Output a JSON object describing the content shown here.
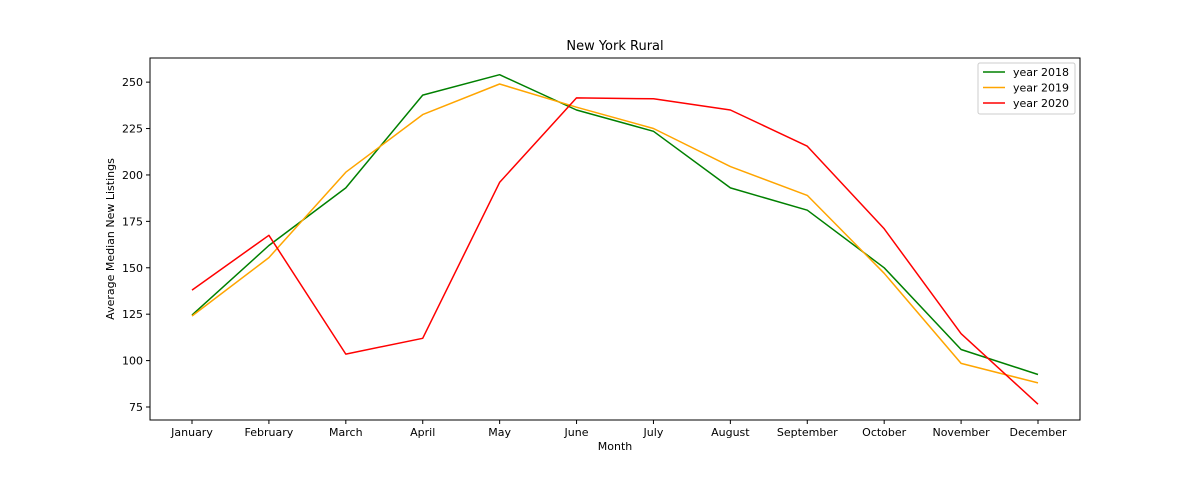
{
  "chart_data": {
    "type": "line",
    "title": "New York Rural",
    "xlabel": "Month",
    "ylabel": "Average Median New Listings",
    "categories": [
      "January",
      "February",
      "March",
      "April",
      "May",
      "June",
      "July",
      "August",
      "September",
      "October",
      "November",
      "December"
    ],
    "ylim": [
      68,
      263
    ],
    "yticks": [
      75,
      100,
      125,
      150,
      175,
      200,
      225,
      250
    ],
    "grid": false,
    "legend_position": "top-right",
    "series": [
      {
        "name": "year 2018",
        "color": "#008000",
        "values": [
          124.5,
          162,
          193,
          243,
          254,
          235,
          223.5,
          193,
          181,
          150,
          106,
          92.5
        ]
      },
      {
        "name": "year 2019",
        "color": "#ffa500",
        "values": [
          124,
          155.5,
          201.5,
          232.5,
          249,
          236.5,
          225,
          204.5,
          189,
          147,
          98.5,
          88
        ]
      },
      {
        "name": "year 2020",
        "color": "#ff0000",
        "values": [
          138,
          167.5,
          103.5,
          112,
          196,
          241.5,
          241,
          235,
          215.5,
          171,
          114.5,
          76.5
        ]
      }
    ]
  }
}
